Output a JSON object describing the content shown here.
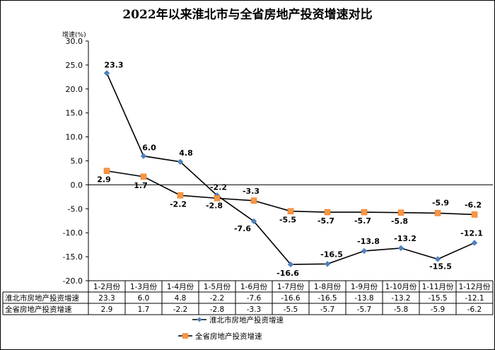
{
  "chart_data": {
    "type": "line",
    "title": "2022年以来淮北市与全省房地产投资增速对比",
    "ylabel": "增速(%)",
    "xlabel": "",
    "ylim": [
      -20,
      30
    ],
    "yticks": [
      "30.0",
      "25.0",
      "20.0",
      "15.0",
      "10.0",
      "5.0",
      "0.0",
      "-5.0",
      "-10.0",
      "-15.0",
      "-20.0"
    ],
    "ytick_values": [
      30,
      25,
      20,
      15,
      10,
      5,
      0,
      -5,
      -10,
      -15,
      -20
    ],
    "categories": [
      "1-2月份",
      "1-3月份",
      "1-4月份",
      "1-5月份",
      "1-6月份",
      "1-7月份",
      "1-8月份",
      "1-9月份",
      "1-10月份",
      "1-11月份",
      "1-12月份"
    ],
    "series": [
      {
        "name": "淮北市房地产投资增速",
        "color": "#4F81BD",
        "marker": "diamond",
        "values": [
          23.3,
          6.0,
          4.8,
          -2.2,
          -7.6,
          -16.6,
          -16.5,
          -13.8,
          -13.2,
          -15.5,
          -12.1
        ],
        "labels": [
          "23.3",
          "6.0",
          "4.8",
          "-2.2",
          "-7.6",
          "-16.6",
          "-16.5",
          "-13.8",
          "-13.2",
          "-15.5",
          "-12.1"
        ]
      },
      {
        "name": "全省房地产投资增速",
        "color": "#F79646",
        "marker": "square",
        "values": [
          2.9,
          1.7,
          -2.2,
          -2.8,
          -3.3,
          -5.5,
          -5.7,
          -5.7,
          -5.8,
          -5.9,
          -6.2
        ],
        "labels": [
          "2.9",
          "1.7",
          "-2.2",
          "-2.8",
          "-3.3",
          "-5.5",
          "-5.7",
          "-5.7",
          "-5.8",
          "-5.9",
          "-6.2"
        ]
      }
    ],
    "legend": "bottom",
    "grid": false,
    "data_table": true
  }
}
